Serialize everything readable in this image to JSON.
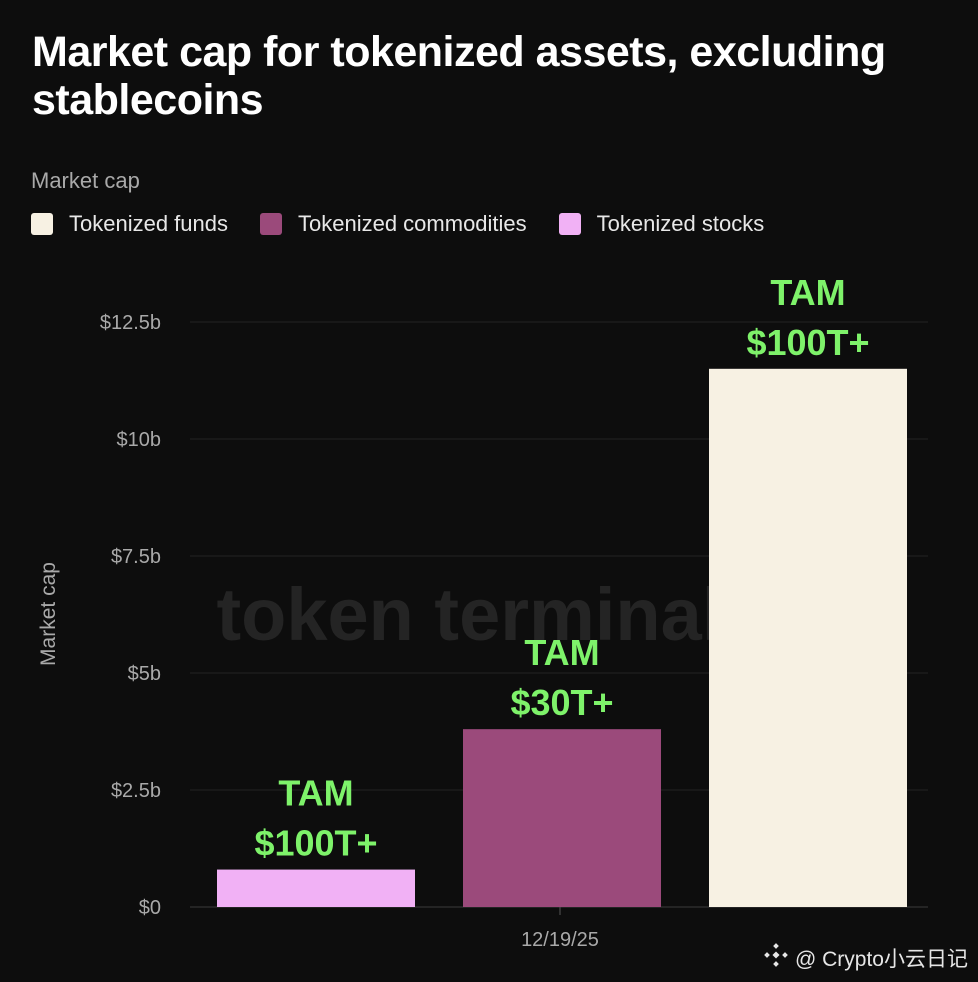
{
  "title": "Market cap for tokenized assets, excluding stablecoins",
  "subtitle": "Market cap",
  "legend": [
    {
      "label": "Tokenized funds",
      "color": "#f7f1e3"
    },
    {
      "label": "Tokenized commodities",
      "color": "#9b4a7b"
    },
    {
      "label": "Tokenized stocks",
      "color": "#f1b1f5"
    }
  ],
  "watermark": "token terminal_",
  "credit": {
    "text": "@ Crypto小云日记",
    "icon": "binance-icon"
  },
  "annotation_color": "#7ef26a",
  "chart_data": {
    "type": "bar",
    "categories": [
      "12/19/25"
    ],
    "series": [
      {
        "name": "Tokenized stocks",
        "values": [
          0.8
        ],
        "color": "#f1b1f5",
        "annotation": [
          "TAM",
          "$100T+"
        ]
      },
      {
        "name": "Tokenized commodities",
        "values": [
          3.8
        ],
        "color": "#9b4a7b",
        "annotation": [
          "TAM",
          "$30T+"
        ]
      },
      {
        "name": "Tokenized funds",
        "values": [
          11.5
        ],
        "color": "#f7f1e3",
        "annotation": [
          "TAM",
          "$100T+"
        ]
      }
    ],
    "xlabel": "",
    "ylabel": "Market cap",
    "ylim": [
      0,
      12.5
    ],
    "yticks": [
      {
        "value": 0,
        "label": "$0"
      },
      {
        "value": 2.5,
        "label": "$2.5b"
      },
      {
        "value": 5,
        "label": "$5b"
      },
      {
        "value": 7.5,
        "label": "$7.5b"
      },
      {
        "value": 10,
        "label": "$10b"
      },
      {
        "value": 12.5,
        "label": "$12.5b"
      }
    ],
    "grid": true
  }
}
